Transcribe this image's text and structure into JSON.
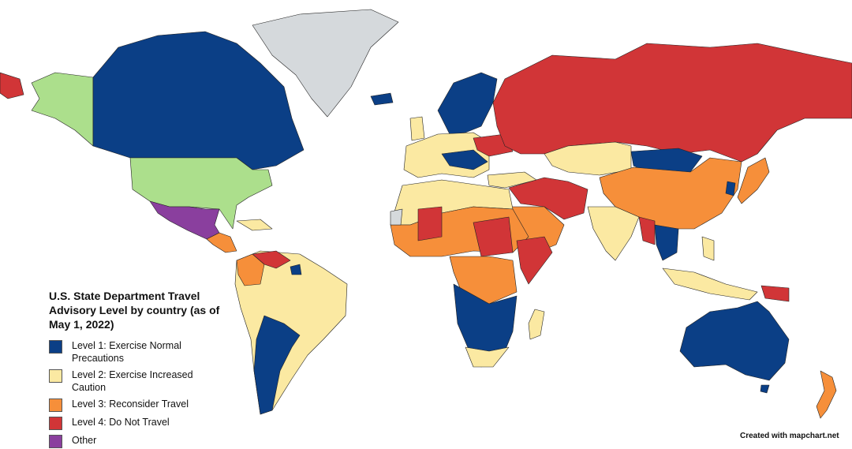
{
  "legend": {
    "title": "U.S. State Department Travel Advisory Level by country (as of May 1, 2022)",
    "items": [
      {
        "label": "Level 1: Exercise Normal Precautions",
        "color": "#0b3f86"
      },
      {
        "label": "Level 2: Exercise Increased Caution",
        "color": "#fbe9a2"
      },
      {
        "label": "Level 3: Reconsider Travel",
        "color": "#f68f3a"
      },
      {
        "label": "Level 4: Do Not Travel",
        "color": "#d13537"
      },
      {
        "label": "Other",
        "color": "#8a3f9e"
      }
    ]
  },
  "map_colors": {
    "united_states": "#acdf8c",
    "no_data": "#d5d9dc"
  },
  "credit": "Created with mapchart.net"
}
